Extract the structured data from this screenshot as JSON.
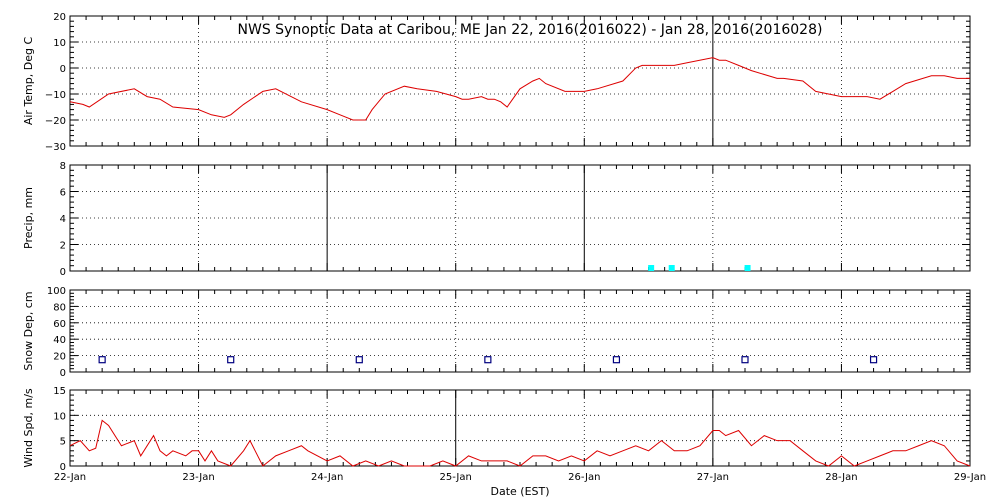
{
  "title": "NWS Synoptic Data at Caribou, ME   Jan 22, 2016(2016022) - Jan 28, 2016(2016028)",
  "xlabel": "Date (EST)",
  "x_tick_labels": [
    "22-Jan",
    "23-Jan",
    "24-Jan",
    "25-Jan",
    "26-Jan",
    "27-Jan",
    "28-Jan",
    "29-Jan"
  ],
  "colors": {
    "temp": "#dd0000",
    "precip": "#00ffff",
    "snow": "#000080",
    "wind": "#dd0000"
  },
  "chart_data": [
    {
      "type": "line",
      "ylabel": "Air Temp, Deg C",
      "ylim": [
        -30,
        20
      ],
      "yticks": [
        "20",
        "10",
        "0",
        "−10",
        "−20",
        "−30"
      ],
      "x_unit": "days since 22-Jan",
      "x": [
        0,
        0.1,
        0.15,
        0.3,
        0.5,
        0.6,
        0.7,
        0.8,
        1.0,
        1.1,
        1.2,
        1.25,
        1.35,
        1.5,
        1.6,
        1.8,
        2.0,
        2.1,
        2.2,
        2.25,
        2.3,
        2.35,
        2.45,
        2.6,
        2.7,
        2.85,
        3.0,
        3.05,
        3.1,
        3.2,
        3.25,
        3.3,
        3.35,
        3.4,
        3.5,
        3.6,
        3.65,
        3.7,
        3.85,
        4.0,
        4.1,
        4.3,
        4.4,
        4.45,
        4.6,
        4.7,
        4.8,
        5.0,
        5.05,
        5.1,
        5.2,
        5.3,
        5.5,
        5.55,
        5.7,
        5.8,
        6.0,
        6.05,
        6.2,
        6.3,
        6.4,
        6.5,
        6.7,
        6.8,
        6.9,
        7.0
      ],
      "y": [
        -13,
        -14,
        -15,
        -10,
        -8,
        -11,
        -12,
        -15,
        -16,
        -18,
        -19,
        -18,
        -14,
        -9,
        -8,
        -13,
        -16,
        -18,
        -20,
        -20,
        -20,
        -16,
        -10,
        -7,
        -8,
        -9,
        -11,
        -12,
        -12,
        -11,
        -12,
        -12,
        -13,
        -15,
        -8,
        -5,
        -4,
        -6,
        -9,
        -9,
        -8,
        -5,
        0,
        1,
        1,
        1,
        2,
        4,
        3,
        3,
        1,
        -1,
        -4,
        -4,
        -5,
        -9,
        -11,
        -11,
        -11,
        -12,
        -9,
        -6,
        -3,
        -3,
        -4,
        -4
      ]
    },
    {
      "type": "bar",
      "ylabel": "Precip, mm",
      "ylim": [
        0,
        8
      ],
      "yticks": [
        "8",
        "6",
        "4",
        "2",
        "0"
      ],
      "x_unit": "days since 22-Jan",
      "x": [
        4.52,
        4.68,
        5.27
      ],
      "values": [
        0.15,
        0.15,
        0.15
      ]
    },
    {
      "type": "scatter",
      "ylabel": "Snow Dep, cm",
      "ylim": [
        0,
        100
      ],
      "yticks": [
        "100",
        "80",
        "60",
        "40",
        "20",
        "0"
      ],
      "x_unit": "days since 22-Jan",
      "x": [
        0.25,
        1.25,
        2.25,
        3.25,
        4.25,
        5.25,
        6.25
      ],
      "y": [
        15,
        15,
        15,
        15,
        15,
        15,
        15
      ]
    },
    {
      "type": "line",
      "ylabel": "Wind Spd, m/s",
      "ylim": [
        0,
        15
      ],
      "yticks": [
        "15",
        "10",
        "5",
        "0"
      ],
      "x_unit": "days since 22-Jan",
      "x": [
        0,
        0.08,
        0.15,
        0.2,
        0.25,
        0.3,
        0.4,
        0.5,
        0.55,
        0.65,
        0.7,
        0.75,
        0.8,
        0.9,
        0.95,
        1.0,
        1.05,
        1.1,
        1.15,
        1.25,
        1.35,
        1.4,
        1.5,
        1.6,
        1.7,
        1.8,
        1.85,
        2.0,
        2.1,
        2.2,
        2.3,
        2.4,
        2.5,
        2.6,
        2.7,
        2.8,
        2.9,
        3.0,
        3.1,
        3.2,
        3.3,
        3.4,
        3.5,
        3.6,
        3.7,
        3.8,
        3.9,
        4.0,
        4.1,
        4.2,
        4.3,
        4.4,
        4.5,
        4.6,
        4.7,
        4.8,
        4.9,
        5.0,
        5.05,
        5.1,
        5.2,
        5.3,
        5.4,
        5.5,
        5.6,
        5.7,
        5.8,
        5.9,
        6.0,
        6.1,
        6.2,
        6.3,
        6.4,
        6.5,
        6.6,
        6.7,
        6.8,
        6.9,
        7.0
      ],
      "y": [
        4,
        5,
        3,
        3.5,
        9,
        8,
        4,
        5,
        2,
        6,
        3,
        2,
        3,
        2,
        3,
        3,
        1,
        3,
        1,
        0,
        3,
        5,
        0,
        2,
        3,
        4,
        3,
        1,
        2,
        0,
        1,
        0,
        1,
        0,
        0,
        0,
        1,
        0,
        2,
        1,
        1,
        1,
        0,
        2,
        2,
        1,
        2,
        1,
        3,
        2,
        3,
        4,
        3,
        5,
        3,
        3,
        4,
        7,
        7,
        6,
        7,
        4,
        6,
        5,
        5,
        3,
        1,
        0,
        2,
        0,
        1,
        2,
        3,
        3,
        4,
        5,
        4,
        1,
        0
      ]
    }
  ]
}
